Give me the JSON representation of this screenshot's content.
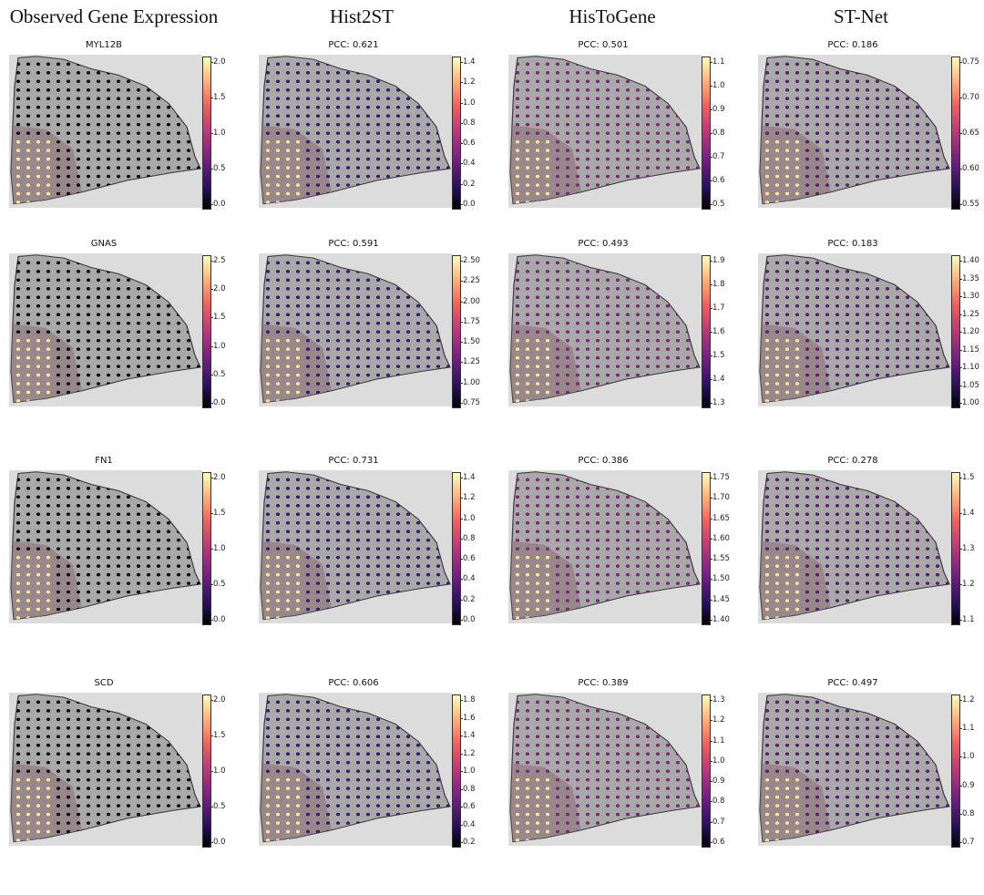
{
  "columns": [
    "Observed Gene Expression",
    "Hist2ST",
    "HisToGene",
    "ST-Net"
  ],
  "panels": [
    {
      "title": "MYL12B",
      "ticks": [
        "2.0",
        "1.5",
        "1.0",
        "0.5",
        "0.0"
      ]
    },
    {
      "title": "PCC: 0.621",
      "ticks": [
        "1.4",
        "1.2",
        "1.0",
        "0.8",
        "0.6",
        "0.4",
        "0.2",
        "0.0"
      ]
    },
    {
      "title": "PCC: 0.501",
      "ticks": [
        "1.1",
        "1.0",
        "0.9",
        "0.8",
        "0.7",
        "0.6",
        "0.5"
      ]
    },
    {
      "title": "PCC: 0.186",
      "ticks": [
        "0.75",
        "0.70",
        "0.65",
        "0.60",
        "0.55"
      ]
    },
    {
      "title": "GNAS",
      "ticks": [
        "2.5",
        "2.0",
        "1.5",
        "1.0",
        "0.5",
        "0.0"
      ]
    },
    {
      "title": "PCC: 0.591",
      "ticks": [
        "2.50",
        "2.25",
        "2.00",
        "1.75",
        "1.50",
        "1.25",
        "1.00",
        "0.75"
      ]
    },
    {
      "title": "PCC: 0.493",
      "ticks": [
        "1.9",
        "1.8",
        "1.7",
        "1.6",
        "1.5",
        "1.4",
        "1.3"
      ]
    },
    {
      "title": "PCC: 0.183",
      "ticks": [
        "1.40",
        "1.35",
        "1.30",
        "1.25",
        "1.20",
        "1.15",
        "1.10",
        "1.05",
        "1.00"
      ]
    },
    {
      "title": "FN1",
      "ticks": [
        "2.0",
        "1.5",
        "1.0",
        "0.5",
        "0.0"
      ]
    },
    {
      "title": "PCC: 0.731",
      "ticks": [
        "1.4",
        "1.2",
        "1.0",
        "0.8",
        "0.6",
        "0.4",
        "0.2",
        "0.0"
      ]
    },
    {
      "title": "PCC: 0.386",
      "ticks": [
        "1.75",
        "1.70",
        "1.65",
        "1.60",
        "1.55",
        "1.50",
        "1.45",
        "1.40"
      ]
    },
    {
      "title": "PCC: 0.278",
      "ticks": [
        "1.5",
        "1.4",
        "1.3",
        "1.2",
        "1.1"
      ]
    },
    {
      "title": "SCD",
      "ticks": [
        "2.0",
        "1.5",
        "1.0",
        "0.5",
        "0.0"
      ]
    },
    {
      "title": "PCC: 0.606",
      "ticks": [
        "1.8",
        "1.6",
        "1.4",
        "1.2",
        "1.0",
        "0.8",
        "0.6",
        "0.4",
        "0.2"
      ]
    },
    {
      "title": "PCC: 0.389",
      "ticks": [
        "1.3",
        "1.2",
        "1.1",
        "1.0",
        "0.9",
        "0.8",
        "0.7",
        "0.6"
      ]
    },
    {
      "title": "PCC: 0.497",
      "ticks": [
        "1.2",
        "1.1",
        "1.0",
        "0.9",
        "0.8",
        "0.7"
      ]
    }
  ]
}
